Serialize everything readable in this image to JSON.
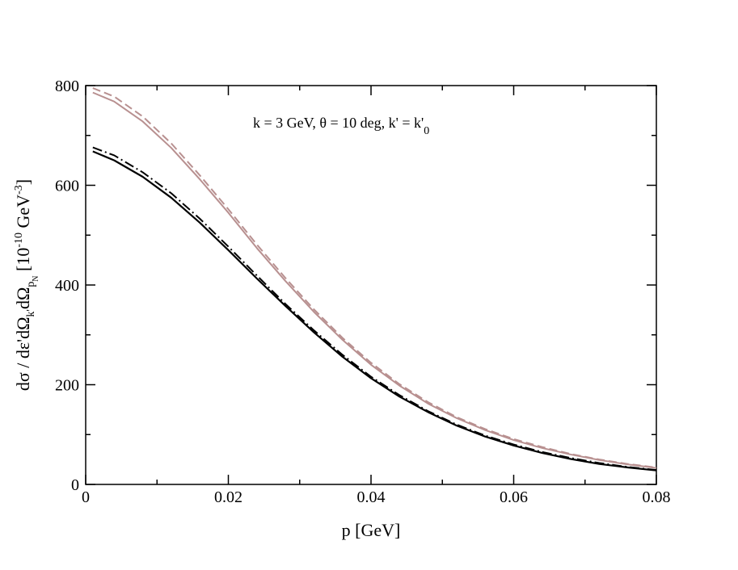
{
  "chart_data": {
    "type": "line",
    "xlabel": "p [GeV]",
    "ylabel": {
      "prefix": "dσ / dε'dΩ",
      "sub1": "k'",
      "mid": "dΩ",
      "sub2": "p",
      "subsub2": "N",
      "unit_open": "  [10",
      "unit_exp1": "-10",
      "unit_mid": " GeV",
      "unit_exp2": "-3",
      "unit_close": "]"
    },
    "annotation": {
      "text": "k = 3 GeV, θ = 10 deg, k' = k'",
      "subscript": "0"
    },
    "xlim": [
      0,
      0.08
    ],
    "ylim": [
      0,
      800
    ],
    "x_ticks": [
      {
        "value": 0,
        "label": "0"
      },
      {
        "value": 0.02,
        "label": "0.02"
      },
      {
        "value": 0.04,
        "label": "0.04"
      },
      {
        "value": 0.06,
        "label": "0.06"
      },
      {
        "value": 0.08,
        "label": "0.08"
      }
    ],
    "y_ticks": [
      {
        "value": 0,
        "label": "0"
      },
      {
        "value": 200,
        "label": "200"
      },
      {
        "value": 400,
        "label": "400"
      },
      {
        "value": 600,
        "label": "600"
      },
      {
        "value": 800,
        "label": "800"
      }
    ],
    "x_minor_step": 0.01,
    "y_minor_step": 100,
    "x": [
      0.001,
      0.004,
      0.008,
      0.012,
      0.016,
      0.02,
      0.024,
      0.028,
      0.032,
      0.036,
      0.04,
      0.044,
      0.048,
      0.052,
      0.056,
      0.06,
      0.064,
      0.068,
      0.072,
      0.076,
      0.08
    ],
    "series": [
      {
        "color": "#b89090",
        "dash": "",
        "width": 2,
        "values": [
          786,
          768,
          728,
          675,
          612,
          545,
          474,
          408,
          346,
          290,
          240,
          198,
          162,
          133,
          109,
          89,
          73,
          60,
          49,
          40,
          33
        ]
      },
      {
        "color": "#b89090",
        "dash": "10,5",
        "width": 2,
        "values": [
          795,
          778,
          738,
          684,
          620,
          552,
          481,
          414,
          351,
          294,
          244,
          201,
          165,
          135,
          111,
          91,
          75,
          61,
          50,
          41,
          34
        ]
      },
      {
        "color": "#000000",
        "dash": "",
        "width": 2.2,
        "values": [
          668,
          650,
          617,
          575,
          525,
          470,
          413,
          358,
          305,
          256,
          213,
          176,
          145,
          118,
          96,
          78,
          63,
          51,
          41,
          34,
          28
        ]
      },
      {
        "color": "#000000",
        "dash": "12,4,2,4",
        "width": 2,
        "values": [
          676,
          660,
          626,
          584,
          533,
          477,
          419,
          362,
          309,
          260,
          216,
          179,
          147,
          120,
          98,
          80,
          65,
          53,
          43,
          35,
          29
        ]
      }
    ]
  }
}
